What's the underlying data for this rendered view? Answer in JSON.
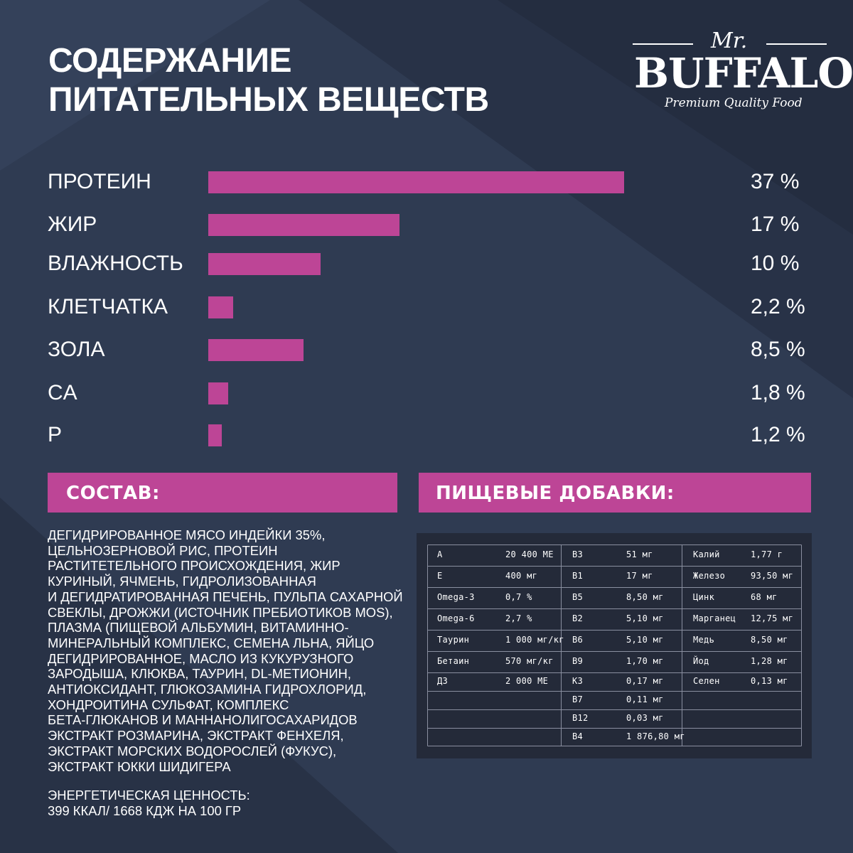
{
  "title": {
    "line1": "СОДЕРЖАНИЕ",
    "line2": "ПИТАТЕЛЬНЫХ ВЕЩЕСТВ"
  },
  "logo": {
    "mr": "Mr.",
    "brand": "BUFFALO",
    "tagline": "Premium Quality Food"
  },
  "colors": {
    "background": "#2f3b52",
    "accent": "#bd4596",
    "table_bg": "#242a39",
    "text": "#ffffff"
  },
  "chart_data": {
    "type": "bar",
    "orientation": "horizontal",
    "categories": [
      "ПРОТЕИН",
      "ЖИР",
      "ВЛАЖНОСТЬ",
      "КЛЕТЧАТКА",
      "ЗОЛА",
      "CA",
      "P"
    ],
    "values": [
      37,
      17,
      10,
      2.2,
      8.5,
      1.8,
      1.2
    ],
    "value_labels": [
      "37 %",
      "17 %",
      "10 %",
      "2,2 %",
      "8,5 %",
      "1,8 %",
      "1,2 %"
    ],
    "unit": "%",
    "grid": false,
    "legend": "none"
  },
  "composition": {
    "heading": "СОСТАВ:",
    "lines": [
      "ДЕГИДРИРОВАННОЕ МЯСО ИНДЕЙКИ 35%,",
      "ЦЕЛЬНОЗЕРНОВОЙ РИС, ПРОТЕИН",
      "РАСТИТЕТЕЛЬНОГО ПРОИСХОЖДЕНИЯ, ЖИР",
      "КУРИНЫЙ, ЯЧМЕНЬ, ГИДРОЛИЗОВАННАЯ",
      "И ДЕГИДРАТИРОВАННАЯ ПЕЧЕНЬ, ПУЛЬПА САХАРНОЙ",
      "СВЕКЛЫ, ДРОЖЖИ (ИСТОЧНИК ПРЕБИОТИКОВ MOS),",
      "ПЛАЗМА (ПИЩЕВОЙ АЛЬБУМИН, ВИТАМИННО-",
      "МИНЕРАЛЬНЫЙ КОМПЛЕКС, СЕМЕНА ЛЬНА, ЯЙЦО",
      "ДЕГИДРИРОВАННОЕ, МАСЛО ИЗ КУКУРУЗНОГО",
      "ЗАРОДЫША, КЛЮКВА, ТАУРИН, DL-МЕТИОНИН,",
      "АНТИОКСИДАНТ, ГЛЮКОЗАМИНА ГИДРОХЛОРИД,",
      "ХОНДРОИТИНА СУЛЬФАТ, КОМПЛЕКС",
      "БЕТА-ГЛЮКАНОВ И МАННАНОЛИГОСАХАРИДОВ",
      "ЭКСТРАКТ РОЗМАРИНА, ЭКСТРАКТ ФЕНХЕЛЯ,",
      "ЭКСТРАКТ МОРСКИХ ВОДОРОСЛЕЙ (ФУКУС),",
      "ЭКСТРАКТ ЮККИ ШИДИГЕРА"
    ],
    "energy_label": "ЭНЕРГЕТИЧЕСКАЯ ЦЕННОСТЬ:",
    "energy_value": "399 ККАЛ/ 1668 КДЖ НА 100 ГР"
  },
  "additives": {
    "heading": "ПИЩЕВЫЕ ДОБАВКИ:",
    "columns": [
      [
        [
          "A",
          "20 400 МЕ"
        ],
        [
          "E",
          "400 мг"
        ],
        [
          "Omega-3",
          "0,7 %"
        ],
        [
          "Omega-6",
          "2,7 %"
        ],
        [
          "Таурин",
          "1 000 мг/кг"
        ],
        [
          "Бетаин",
          "570 мг/кг"
        ],
        [
          "Д3",
          "2 000 МЕ"
        ]
      ],
      [
        [
          "B3",
          "51 мг"
        ],
        [
          "B1",
          "17 мг"
        ],
        [
          "B5",
          "8,50 мг"
        ],
        [
          "B2",
          "5,10 мг"
        ],
        [
          "B6",
          "5,10 мг"
        ],
        [
          "B9",
          "1,70 мг"
        ],
        [
          "K3",
          "0,17 мг"
        ],
        [
          "B7",
          "0,11 мг"
        ],
        [
          "B12",
          "0,03 мг"
        ],
        [
          "B4",
          "1 876,80 мг"
        ]
      ],
      [
        [
          "Калий",
          "1,77 г"
        ],
        [
          "Железо",
          "93,50 мг"
        ],
        [
          "Цинк",
          "68 мг"
        ],
        [
          "Марганец",
          "12,75 мг"
        ],
        [
          "Медь",
          "8,50 мг"
        ],
        [
          "Йод",
          "1,28 мг"
        ],
        [
          "Селен",
          "0,13 мг"
        ]
      ]
    ]
  }
}
